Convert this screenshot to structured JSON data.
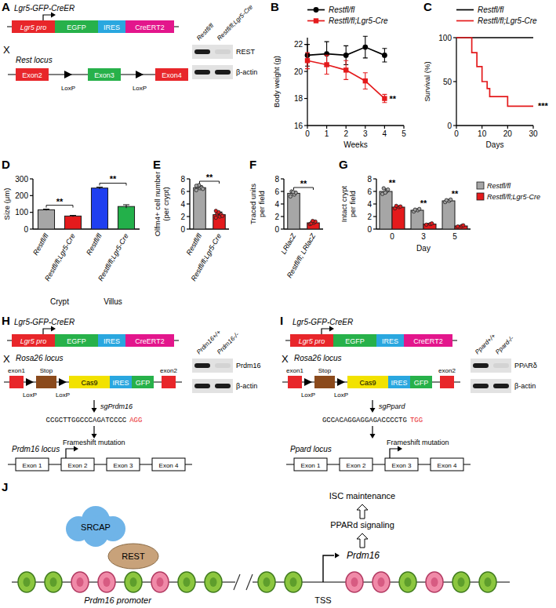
{
  "chart_data": [
    {
      "panel": "B",
      "type": "line",
      "y_label": "Body weight (g)",
      "x_label": "Weeks",
      "xlim": [
        0,
        5
      ],
      "xticks": [
        0,
        1,
        2,
        3,
        4,
        5
      ],
      "ylim": [
        16,
        22.5
      ],
      "yticks": [
        16,
        18,
        20,
        22
      ],
      "legend": "top",
      "series": [
        {
          "name": "Restfl/fl",
          "color": "#000000",
          "marker": "circle",
          "x": [
            0,
            1,
            2,
            3,
            4
          ],
          "values": [
            21.2,
            21.3,
            21.2,
            21.8,
            21.2
          ],
          "errors": [
            0.8,
            0.9,
            0.7,
            0.8,
            0.5
          ]
        },
        {
          "name": "Restfl/fl;Lgr5-Cre",
          "color": "#e41a1c",
          "marker": "square",
          "x": [
            0,
            1,
            2,
            3,
            4
          ],
          "values": [
            20.8,
            20.5,
            20.1,
            19.3,
            18.0
          ],
          "errors": [
            0.6,
            0.7,
            0.7,
            0.6,
            0.3
          ]
        }
      ],
      "annotations": [
        {
          "text": "**",
          "x": 4,
          "y": 18
        }
      ]
    },
    {
      "panel": "C",
      "type": "line",
      "line_style": "step",
      "y_label": "Survival (%)",
      "x_label": "Days",
      "xlim": [
        0,
        30
      ],
      "xticks": [
        0,
        10,
        20,
        30
      ],
      "ylim": [
        0,
        100
      ],
      "yticks": [
        0,
        50,
        100
      ],
      "legend": "top",
      "series": [
        {
          "name": "Restfl/fl",
          "color": "#000000",
          "x": [
            0,
            30
          ],
          "values": [
            100,
            100
          ]
        },
        {
          "name": "Restfl/fl;Lgr5-Cre",
          "color": "#e41a1c",
          "x": [
            0,
            6,
            8,
            10,
            12,
            13,
            20,
            30
          ],
          "values": [
            100,
            83,
            67,
            50,
            42,
            33,
            22,
            22
          ]
        }
      ],
      "annotations": [
        {
          "text": "***",
          "x": 30,
          "y": 22
        }
      ]
    },
    {
      "panel": "D",
      "type": "bar",
      "y_label": "Size (μm)",
      "ylim": [
        0,
        300
      ],
      "yticks": [
        0,
        100,
        200,
        300
      ],
      "categories": [
        "Restfl/fl",
        "Restfl/fl;Lgr5-Cre",
        "Restfl/fl",
        "Restfl/fl;Lgr5-Cre"
      ],
      "values": [
        115,
        78,
        245,
        135
      ],
      "errors": [
        4,
        4,
        6,
        10
      ],
      "colors": [
        "#a6a6a6",
        "#e41a1c",
        "#1f3ff0",
        "#23b04a"
      ],
      "groups": [
        {
          "label": "Crypt",
          "indices": [
            0,
            1
          ]
        },
        {
          "label": "Villus",
          "indices": [
            2,
            3
          ]
        }
      ],
      "annotations": [
        {
          "text": "**",
          "indices": [
            0,
            1
          ]
        },
        {
          "text": "**",
          "indices": [
            2,
            3
          ]
        }
      ]
    },
    {
      "panel": "E",
      "type": "bar",
      "y_label": [
        "Olfm4+ cell number",
        "(per crypt)"
      ],
      "ylim": [
        0,
        8
      ],
      "yticks": [
        0,
        2,
        4,
        6,
        8
      ],
      "categories": [
        "Restfl/fl",
        "Restfl/fl;Lgr5-Cre"
      ],
      "values": [
        6.6,
        2.3
      ],
      "errors": [
        0.3,
        0.4
      ],
      "colors": [
        "#a6a6a6",
        "#e41a1c"
      ],
      "points": [
        [
          6.2,
          6.5,
          6.6,
          6.8,
          7.0,
          6.4,
          6.9
        ],
        [
          1.8,
          2.0,
          2.3,
          2.5,
          2.7,
          2.1,
          2.9
        ]
      ],
      "annotations": [
        {
          "text": "**",
          "indices": [
            0,
            1
          ]
        }
      ]
    },
    {
      "panel": "F",
      "type": "bar",
      "y_label": [
        "Traced units",
        "per field"
      ],
      "ylim": [
        0,
        8
      ],
      "yticks": [
        0,
        2,
        4,
        6,
        8
      ],
      "categories": [
        "LRlacZ",
        "Restfl/fl; LRlacZ"
      ],
      "values": [
        5.7,
        1.0
      ],
      "errors": [
        0.3,
        0.2
      ],
      "colors": [
        "#a6a6a6",
        "#e41a1c"
      ],
      "points": [
        [
          5.2,
          5.5,
          5.8,
          6.0,
          5.9
        ],
        [
          0.8,
          1.0,
          1.2,
          0.9,
          1.3
        ]
      ],
      "annotations": [
        {
          "text": "**",
          "indices": [
            0,
            1
          ]
        }
      ]
    },
    {
      "panel": "G",
      "type": "bar",
      "y_label": [
        "Intact crypt",
        "per field"
      ],
      "x_label": "Day",
      "ylim": [
        0,
        8
      ],
      "yticks": [
        0,
        2,
        4,
        6,
        8
      ],
      "legend": "right",
      "categories": [
        "0",
        "3",
        "5"
      ],
      "series": [
        {
          "name": "Restfl/fl",
          "color": "#a6a6a6",
          "values": [
            6.0,
            3.0,
            4.5
          ],
          "errors": [
            0.4,
            0.2,
            0.2
          ],
          "points": [
            [
              5.6,
              6.0,
              6.3,
              6.5,
              5.8
            ],
            [
              2.8,
              3.0,
              3.2,
              3.1
            ],
            [
              4.3,
              4.5,
              4.7,
              4.6
            ]
          ]
        },
        {
          "name": "Restfl/fl;Lgr5-Cre",
          "color": "#e41a1c",
          "values": [
            3.5,
            0.8,
            0.5
          ],
          "errors": [
            0.15,
            0.1,
            0.1
          ],
          "points": [
            [
              3.3,
              3.5,
              3.6,
              3.7
            ],
            [
              0.7,
              0.8,
              0.9
            ],
            [
              0.4,
              0.5,
              0.6
            ]
          ]
        }
      ],
      "annotations": [
        {
          "text": "**",
          "indices": [
            0
          ]
        },
        {
          "text": "**",
          "indices": [
            1
          ]
        },
        {
          "text": "**",
          "indices": [
            2
          ]
        }
      ]
    }
  ],
  "diagrams": {
    "A": {
      "panel": "A",
      "construct_title": "Lgr5-GFP-CreER",
      "construct": [
        "Lgr5 pro",
        "EGFP",
        "IRES",
        "CreERT2"
      ],
      "cross": "X",
      "locus_title": "Rest locus",
      "locus": [
        "Exon2",
        "Exon3",
        "Exon4"
      ],
      "loxp": "LoxP",
      "blot": {
        "columns": [
          "Restfl/fl",
          "Restfl/fl;Lgr5-Cre"
        ],
        "rows": [
          "REST",
          "β-actin"
        ]
      }
    },
    "H": {
      "panel": "H",
      "construct_title": "Lgr5-GFP-CreER",
      "construct": [
        "Lgr5 pro",
        "EGFP",
        "IRES",
        "CreERT2"
      ],
      "cross": "X",
      "locus_title": "Rosa26 locus",
      "rosa": [
        "exon1",
        "Stop",
        "Cas9",
        "IRES",
        "GFP",
        "exon2"
      ],
      "loxp": "LoxP",
      "sg_label": "sgPrdm16",
      "sequence": "CCGCTTGGCCCAGATCCCC",
      "pam": "AGG",
      "target_locus": "Prdm16 locus",
      "mutation": "Frameshift mutation",
      "exons": [
        "Exon 1",
        "Exon 2",
        "Exon 3",
        "Exon 4"
      ],
      "mutated_exon": 1,
      "blot": {
        "columns": [
          "Prdm16+/+",
          "Prdm16-/-"
        ],
        "rows": [
          "Prdm16",
          "β-actin"
        ]
      }
    },
    "I": {
      "panel": "I",
      "construct_title": "Lgr5-GFP-CreER",
      "construct": [
        "Lgr5 pro",
        "EGFP",
        "IRES",
        "CreERT2"
      ],
      "cross": "X",
      "locus_title": "Rosa26 locus",
      "rosa": [
        "exon1",
        "Stop",
        "Cas9",
        "IRES",
        "GFP",
        "exon2"
      ],
      "loxp": "LoxP",
      "sg_label": "sgPpard",
      "sequence": "GCCACAGGAGGAGACCCCTG",
      "pam": "TGG",
      "target_locus": "Ppard locus",
      "mutation": "Frameshift mutation",
      "exons": [
        "Exon 1",
        "Exon 2",
        "Exon 3",
        "Exon 4"
      ],
      "mutated_exon": 2,
      "blot": {
        "columns": [
          "Ppard+/+",
          "Ppard-/-"
        ],
        "rows": [
          "PPARδ",
          "β-actin"
        ]
      }
    },
    "J": {
      "panel": "J",
      "proteins": [
        "SRCAP",
        "REST"
      ],
      "promoter": "Prdm16 promoter",
      "tss": "TSS",
      "gene": "Prdm16",
      "pathway": [
        "PPARd signaling",
        "ISC maintenance"
      ]
    }
  }
}
